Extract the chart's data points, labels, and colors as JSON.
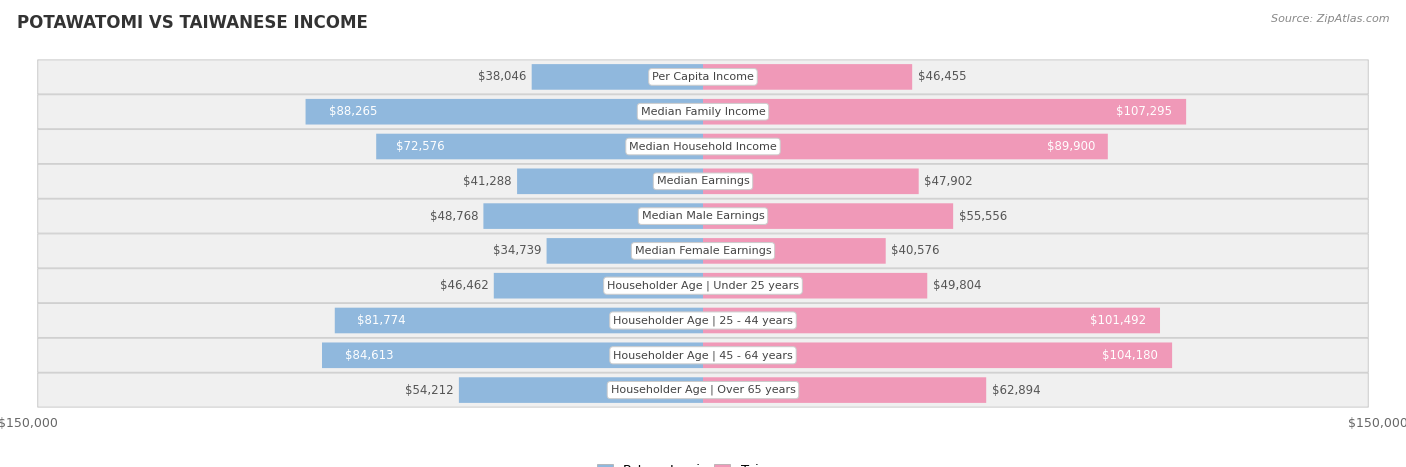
{
  "title": "POTAWATOMI VS TAIWANESE INCOME",
  "source": "Source: ZipAtlas.com",
  "categories": [
    "Per Capita Income",
    "Median Family Income",
    "Median Household Income",
    "Median Earnings",
    "Median Male Earnings",
    "Median Female Earnings",
    "Householder Age | Under 25 years",
    "Householder Age | 25 - 44 years",
    "Householder Age | 45 - 64 years",
    "Householder Age | Over 65 years"
  ],
  "potawatomi": [
    38046,
    88265,
    72576,
    41288,
    48768,
    34739,
    46462,
    81774,
    84613,
    54212
  ],
  "taiwanese": [
    46455,
    107295,
    89900,
    47902,
    55556,
    40576,
    49804,
    101492,
    104180,
    62894
  ],
  "potawatomi_labels": [
    "$38,046",
    "$88,265",
    "$72,576",
    "$41,288",
    "$48,768",
    "$34,739",
    "$46,462",
    "$81,774",
    "$84,613",
    "$54,212"
  ],
  "taiwanese_labels": [
    "$46,455",
    "$107,295",
    "$89,900",
    "$47,902",
    "$55,556",
    "$40,576",
    "$49,804",
    "$101,492",
    "$104,180",
    "$62,894"
  ],
  "color_potawatomi": "#90b8dd",
  "color_taiwanese": "#f099b8",
  "max_val": 150000,
  "bg_color": "#ffffff",
  "row_bg": "#f0f0f0",
  "label_fontsize": 8.5,
  "title_fontsize": 12,
  "category_fontsize": 8,
  "axis_label": "$150,000",
  "legend_potawatomi": "Potawatomi",
  "legend_taiwanese": "Taiwanese",
  "white_label_threshold_pot": 70000,
  "white_label_threshold_tai": 80000
}
